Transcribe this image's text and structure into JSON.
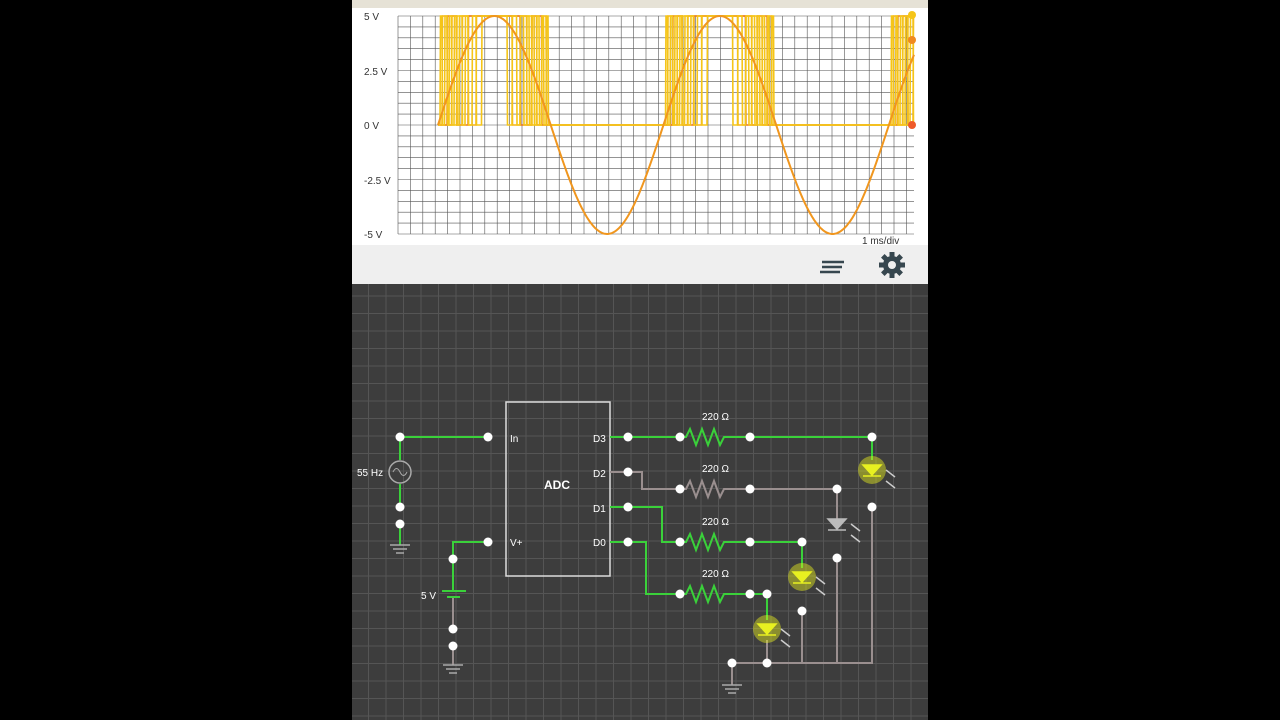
{
  "scope": {
    "y_ticks": [
      "5 V",
      "2.5 V",
      "0 V",
      "-2.5 V",
      "-5 V"
    ],
    "time_scale": "1 ms/div"
  },
  "toolbar": {
    "list_icon": "list-icon",
    "settings_icon": "gear-icon"
  },
  "chart_data": {
    "type": "line",
    "ylim": [
      -5,
      5
    ],
    "y_ticks": [
      5,
      2.5,
      0,
      -2.5,
      -5
    ],
    "time_per_div_ms": 1,
    "grid": true,
    "series": [
      {
        "signal": "sine input",
        "frequency_hz": 55,
        "amplitude_v": 5,
        "color": "#f0961e"
      },
      {
        "signal": "D0",
        "levels_v": [
          0,
          5
        ],
        "color": "#f5c518"
      },
      {
        "signal": "D1",
        "levels_v": [
          0,
          5
        ],
        "color": "#f5b418"
      },
      {
        "signal": "D2",
        "levels_v": [
          0,
          5
        ],
        "color": "#e8702a"
      },
      {
        "signal": "D3",
        "levels_v": [
          0,
          5
        ],
        "color": "#f5c518"
      }
    ]
  },
  "circuit": {
    "source_label": "55 Hz",
    "battery_label": "5 V",
    "adc_label": "ADC",
    "adc_pins": {
      "in": "In",
      "vplus": "V+",
      "d3": "D3",
      "d2": "D2",
      "d1": "D1",
      "d0": "D0"
    },
    "resistors": [
      "220 Ω",
      "220 Ω",
      "220 Ω",
      "220 Ω"
    ],
    "wire_active_color": "#3ad13a",
    "wire_inactive_color": "#9a8f8f",
    "led_on_color": "#e8f020"
  }
}
